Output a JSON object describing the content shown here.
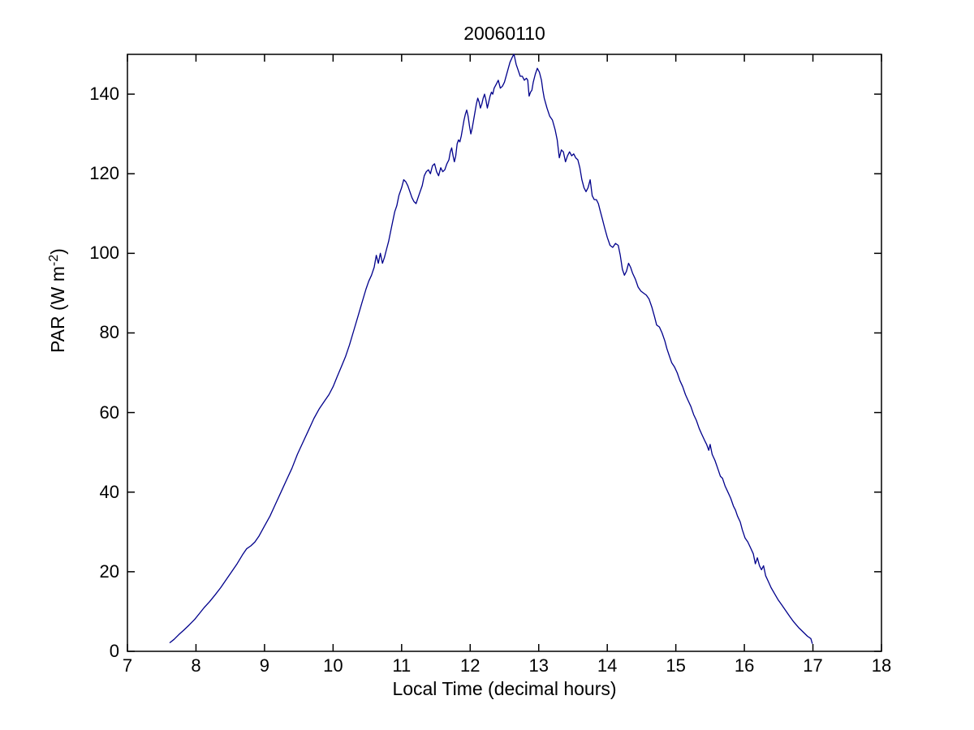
{
  "figure": {
    "background": "#ffffff",
    "axis_color": "#000000"
  },
  "chart_data": {
    "type": "line",
    "title": "20060110",
    "xlabel": "Local Time (decimal hours)",
    "ylabel": "PAR (W m^-2)",
    "ylabel_parts": {
      "pre": "PAR (W m",
      "sup": "-2",
      "post": ")"
    },
    "xlim": [
      7,
      18
    ],
    "ylim": [
      0,
      150
    ],
    "xticks": [
      7,
      8,
      9,
      10,
      11,
      12,
      13,
      14,
      15,
      16,
      17,
      18
    ],
    "yticks": [
      0,
      20,
      40,
      60,
      80,
      100,
      120,
      140
    ],
    "grid": false,
    "legend": "none",
    "line_color": "#00008B",
    "series": [
      {
        "name": "PAR",
        "points": [
          [
            7.62,
            2.2
          ],
          [
            7.68,
            3
          ],
          [
            7.75,
            4.2
          ],
          [
            7.82,
            5.3
          ],
          [
            7.9,
            6.6
          ],
          [
            7.98,
            8
          ],
          [
            8.05,
            9.5
          ],
          [
            8.12,
            11
          ],
          [
            8.2,
            12.5
          ],
          [
            8.28,
            14.2
          ],
          [
            8.36,
            16
          ],
          [
            8.44,
            18
          ],
          [
            8.52,
            20
          ],
          [
            8.6,
            22
          ],
          [
            8.68,
            24.3
          ],
          [
            8.74,
            25.8
          ],
          [
            8.8,
            26.5
          ],
          [
            8.86,
            27.5
          ],
          [
            8.92,
            29
          ],
          [
            9,
            31.5
          ],
          [
            9.08,
            34
          ],
          [
            9.16,
            37
          ],
          [
            9.24,
            40
          ],
          [
            9.32,
            43
          ],
          [
            9.4,
            46
          ],
          [
            9.48,
            49.5
          ],
          [
            9.56,
            52.5
          ],
          [
            9.64,
            55.5
          ],
          [
            9.72,
            58.5
          ],
          [
            9.8,
            61
          ],
          [
            9.88,
            63
          ],
          [
            9.94,
            64.5
          ],
          [
            10,
            66.5
          ],
          [
            10.06,
            69
          ],
          [
            10.12,
            71.5
          ],
          [
            10.18,
            74
          ],
          [
            10.24,
            77
          ],
          [
            10.3,
            80.5
          ],
          [
            10.36,
            84
          ],
          [
            10.42,
            87.5
          ],
          [
            10.48,
            91
          ],
          [
            10.52,
            93
          ],
          [
            10.56,
            94.5
          ],
          [
            10.6,
            96.5
          ],
          [
            10.63,
            99.5
          ],
          [
            10.66,
            97.5
          ],
          [
            10.69,
            100
          ],
          [
            10.72,
            97.5
          ],
          [
            10.75,
            99
          ],
          [
            10.78,
            101
          ],
          [
            10.81,
            103
          ],
          [
            10.84,
            105.5
          ],
          [
            10.87,
            108
          ],
          [
            10.9,
            110.5
          ],
          [
            10.93,
            112
          ],
          [
            10.96,
            114.5
          ],
          [
            11,
            116.5
          ],
          [
            11.03,
            118.5
          ],
          [
            11.06,
            118
          ],
          [
            11.09,
            117
          ],
          [
            11.12,
            115.5
          ],
          [
            11.15,
            114
          ],
          [
            11.18,
            113
          ],
          [
            11.21,
            112.5
          ],
          [
            11.24,
            114
          ],
          [
            11.27,
            115.5
          ],
          [
            11.3,
            117
          ],
          [
            11.33,
            119.5
          ],
          [
            11.36,
            120.5
          ],
          [
            11.39,
            121
          ],
          [
            11.42,
            120
          ],
          [
            11.45,
            122
          ],
          [
            11.48,
            122.5
          ],
          [
            11.51,
            120.5
          ],
          [
            11.54,
            119.5
          ],
          [
            11.57,
            121.5
          ],
          [
            11.6,
            120.5
          ],
          [
            11.63,
            121
          ],
          [
            11.66,
            122.5
          ],
          [
            11.69,
            123.5
          ],
          [
            11.71,
            125.5
          ],
          [
            11.73,
            126.5
          ],
          [
            11.75,
            124.5
          ],
          [
            11.77,
            123
          ],
          [
            11.79,
            124.5
          ],
          [
            11.81,
            127.5
          ],
          [
            11.83,
            128.5
          ],
          [
            11.85,
            128
          ],
          [
            11.87,
            129.5
          ],
          [
            11.89,
            131.5
          ],
          [
            11.91,
            133.5
          ],
          [
            11.93,
            135
          ],
          [
            11.95,
            136
          ],
          [
            11.97,
            134.5
          ],
          [
            11.99,
            132
          ],
          [
            12.01,
            130
          ],
          [
            12.03,
            131.5
          ],
          [
            12.05,
            133.5
          ],
          [
            12.07,
            135.5
          ],
          [
            12.09,
            137.5
          ],
          [
            12.11,
            139
          ],
          [
            12.13,
            138
          ],
          [
            12.15,
            136.5
          ],
          [
            12.17,
            137.5
          ],
          [
            12.19,
            139
          ],
          [
            12.21,
            140
          ],
          [
            12.23,
            138.5
          ],
          [
            12.25,
            136.5
          ],
          [
            12.27,
            138
          ],
          [
            12.29,
            139.5
          ],
          [
            12.31,
            140.5
          ],
          [
            12.33,
            140
          ],
          [
            12.35,
            141.5
          ],
          [
            12.38,
            142.5
          ],
          [
            12.41,
            143.5
          ],
          [
            12.44,
            141.5
          ],
          [
            12.47,
            142
          ],
          [
            12.5,
            143
          ],
          [
            12.54,
            145.5
          ],
          [
            12.58,
            148
          ],
          [
            12.62,
            149.5
          ],
          [
            12.64,
            150
          ],
          [
            12.67,
            147.5
          ],
          [
            12.7,
            146
          ],
          [
            12.73,
            144.5
          ],
          [
            12.76,
            144.5
          ],
          [
            12.79,
            143.5
          ],
          [
            12.82,
            144
          ],
          [
            12.84,
            143.5
          ],
          [
            12.86,
            139.5
          ],
          [
            12.88,
            140.5
          ],
          [
            12.9,
            141
          ],
          [
            12.92,
            143
          ],
          [
            12.95,
            145
          ],
          [
            12.98,
            146.5
          ],
          [
            13.01,
            145.5
          ],
          [
            13.04,
            143.5
          ],
          [
            13.06,
            141
          ],
          [
            13.08,
            139
          ],
          [
            13.12,
            136.5
          ],
          [
            13.16,
            134.5
          ],
          [
            13.2,
            133.5
          ],
          [
            13.24,
            131
          ],
          [
            13.27,
            128.5
          ],
          [
            13.3,
            124
          ],
          [
            13.33,
            126
          ],
          [
            13.36,
            125.5
          ],
          [
            13.39,
            123
          ],
          [
            13.42,
            124.5
          ],
          [
            13.45,
            125.5
          ],
          [
            13.48,
            124.5
          ],
          [
            13.51,
            125
          ],
          [
            13.54,
            124
          ],
          [
            13.57,
            123.5
          ],
          [
            13.6,
            121.5
          ],
          [
            13.63,
            118.5
          ],
          [
            13.66,
            116.5
          ],
          [
            13.69,
            115.5
          ],
          [
            13.72,
            116.5
          ],
          [
            13.75,
            118.5
          ],
          [
            13.78,
            114.5
          ],
          [
            13.81,
            113.5
          ],
          [
            13.84,
            113.5
          ],
          [
            13.87,
            112.5
          ],
          [
            13.9,
            110.5
          ],
          [
            13.93,
            108.5
          ],
          [
            13.96,
            106.5
          ],
          [
            14,
            104
          ],
          [
            14.04,
            102
          ],
          [
            14.08,
            101.5
          ],
          [
            14.12,
            102.5
          ],
          [
            14.16,
            102
          ],
          [
            14.19,
            99.5
          ],
          [
            14.22,
            96
          ],
          [
            14.25,
            94.5
          ],
          [
            14.28,
            95.5
          ],
          [
            14.31,
            97.5
          ],
          [
            14.34,
            96.5
          ],
          [
            14.37,
            95
          ],
          [
            14.41,
            93.5
          ],
          [
            14.45,
            91.5
          ],
          [
            14.49,
            90.5
          ],
          [
            14.53,
            90
          ],
          [
            14.57,
            89.5
          ],
          [
            14.61,
            88.5
          ],
          [
            14.65,
            86.5
          ],
          [
            14.69,
            84
          ],
          [
            14.72,
            82
          ],
          [
            14.76,
            81.5
          ],
          [
            14.8,
            80
          ],
          [
            14.84,
            78
          ],
          [
            14.87,
            76
          ],
          [
            14.9,
            74.5
          ],
          [
            14.94,
            72.5
          ],
          [
            14.98,
            71.5
          ],
          [
            15.02,
            70
          ],
          [
            15.06,
            68
          ],
          [
            15.1,
            66.5
          ],
          [
            15.14,
            64.5
          ],
          [
            15.18,
            63
          ],
          [
            15.22,
            61.5
          ],
          [
            15.26,
            59.5
          ],
          [
            15.3,
            58
          ],
          [
            15.34,
            56
          ],
          [
            15.38,
            54.5
          ],
          [
            15.42,
            53
          ],
          [
            15.45,
            52
          ],
          [
            15.48,
            50.5
          ],
          [
            15.5,
            52
          ],
          [
            15.53,
            49.5
          ],
          [
            15.57,
            48
          ],
          [
            15.61,
            46
          ],
          [
            15.65,
            44
          ],
          [
            15.68,
            43.5
          ],
          [
            15.72,
            41.5
          ],
          [
            15.76,
            40
          ],
          [
            15.8,
            38.5
          ],
          [
            15.84,
            36.5
          ],
          [
            15.87,
            35.5
          ],
          [
            15.9,
            34
          ],
          [
            15.94,
            32.5
          ],
          [
            15.97,
            30.5
          ],
          [
            16.01,
            28.5
          ],
          [
            16.05,
            27.5
          ],
          [
            16.09,
            26
          ],
          [
            16.13,
            24.5
          ],
          [
            16.16,
            22
          ],
          [
            16.19,
            23.5
          ],
          [
            16.22,
            21.5
          ],
          [
            16.25,
            20.5
          ],
          [
            16.28,
            21.5
          ],
          [
            16.31,
            19
          ],
          [
            16.35,
            17.5
          ],
          [
            16.39,
            16
          ],
          [
            16.44,
            14.5
          ],
          [
            16.49,
            13
          ],
          [
            16.54,
            11.8
          ],
          [
            16.6,
            10.3
          ],
          [
            16.66,
            8.8
          ],
          [
            16.72,
            7.4
          ],
          [
            16.79,
            6
          ],
          [
            16.86,
            4.8
          ],
          [
            16.92,
            3.8
          ],
          [
            16.97,
            3.2
          ],
          [
            16.99,
            2
          ]
        ]
      }
    ]
  }
}
